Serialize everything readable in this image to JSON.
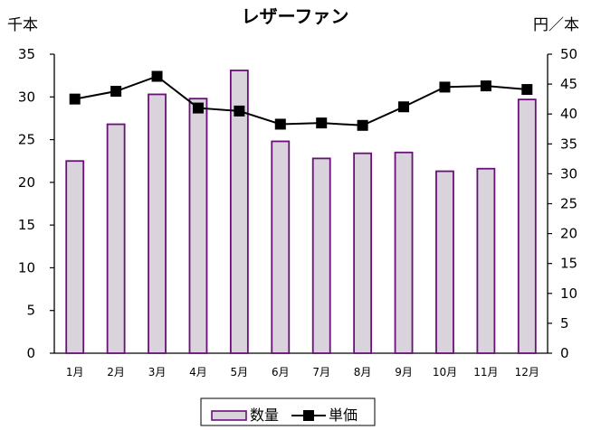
{
  "chart_data": {
    "type": "bar+line",
    "title": "レザーファン",
    "y_left_unit": "千本",
    "y_right_unit": "円／本",
    "categories": [
      "1月",
      "2月",
      "3月",
      "4月",
      "5月",
      "6月",
      "7月",
      "8月",
      "9月",
      "10月",
      "11月",
      "12月"
    ],
    "series": [
      {
        "name": "数量",
        "type": "bar",
        "axis": "left",
        "values": [
          22.5,
          26.8,
          30.3,
          29.8,
          33.1,
          24.8,
          22.8,
          23.4,
          23.5,
          21.3,
          21.6,
          29.7
        ],
        "fill": "#d9d4dc",
        "stroke": "#6b0f7a"
      },
      {
        "name": "単価",
        "type": "line",
        "axis": "right",
        "values": [
          42.5,
          43.8,
          46.3,
          41.0,
          40.5,
          38.3,
          38.5,
          38.1,
          41.2,
          44.5,
          44.7,
          44.1
        ],
        "stroke": "#000000",
        "marker": "square"
      }
    ],
    "y_left": {
      "min": 0,
      "max": 35,
      "step": 5,
      "ticks": [
        "0",
        "5",
        "10",
        "15",
        "20",
        "25",
        "30",
        "35"
      ]
    },
    "y_right": {
      "min": 0,
      "max": 50,
      "step": 5,
      "ticks": [
        "0",
        "5",
        "10",
        "15",
        "20",
        "25",
        "30",
        "35",
        "40",
        "45",
        "50"
      ]
    },
    "grid": false,
    "legend_position": "bottom"
  }
}
